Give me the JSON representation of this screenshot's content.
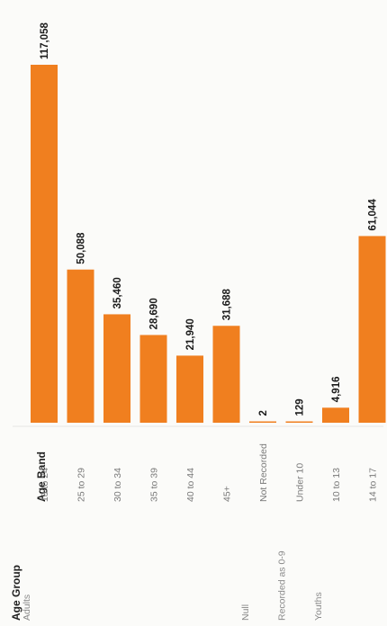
{
  "chart_data": {
    "type": "bar",
    "orientation": "vertical bars, image rotated 90 degrees",
    "header_group": "Age Group",
    "header_band": "Age Band",
    "groups": [
      {
        "name": "Adults",
        "count": 6
      },
      {
        "name": "Null",
        "count": 1
      },
      {
        "name": "Recorded as 0-9",
        "count": 1
      },
      {
        "name": "Youths",
        "count": 2
      }
    ],
    "categories": [
      "18 to 24",
      "25 to 29",
      "30 to 34",
      "35 to 39",
      "40 to 44",
      "45+",
      "Not Recorded",
      "Under 10",
      "10 to 13",
      "14 to 17"
    ],
    "values": [
      117058,
      50088,
      35460,
      28690,
      21940,
      31688,
      2,
      129,
      4916,
      61044
    ],
    "data_labels": [
      "117,058",
      "50,088",
      "35,460",
      "28,690",
      "21,940",
      "31,688",
      "2",
      "129",
      "4,916",
      "61,044"
    ],
    "ylim": [
      0,
      117058
    ],
    "bar_color": "#f07f1f"
  }
}
